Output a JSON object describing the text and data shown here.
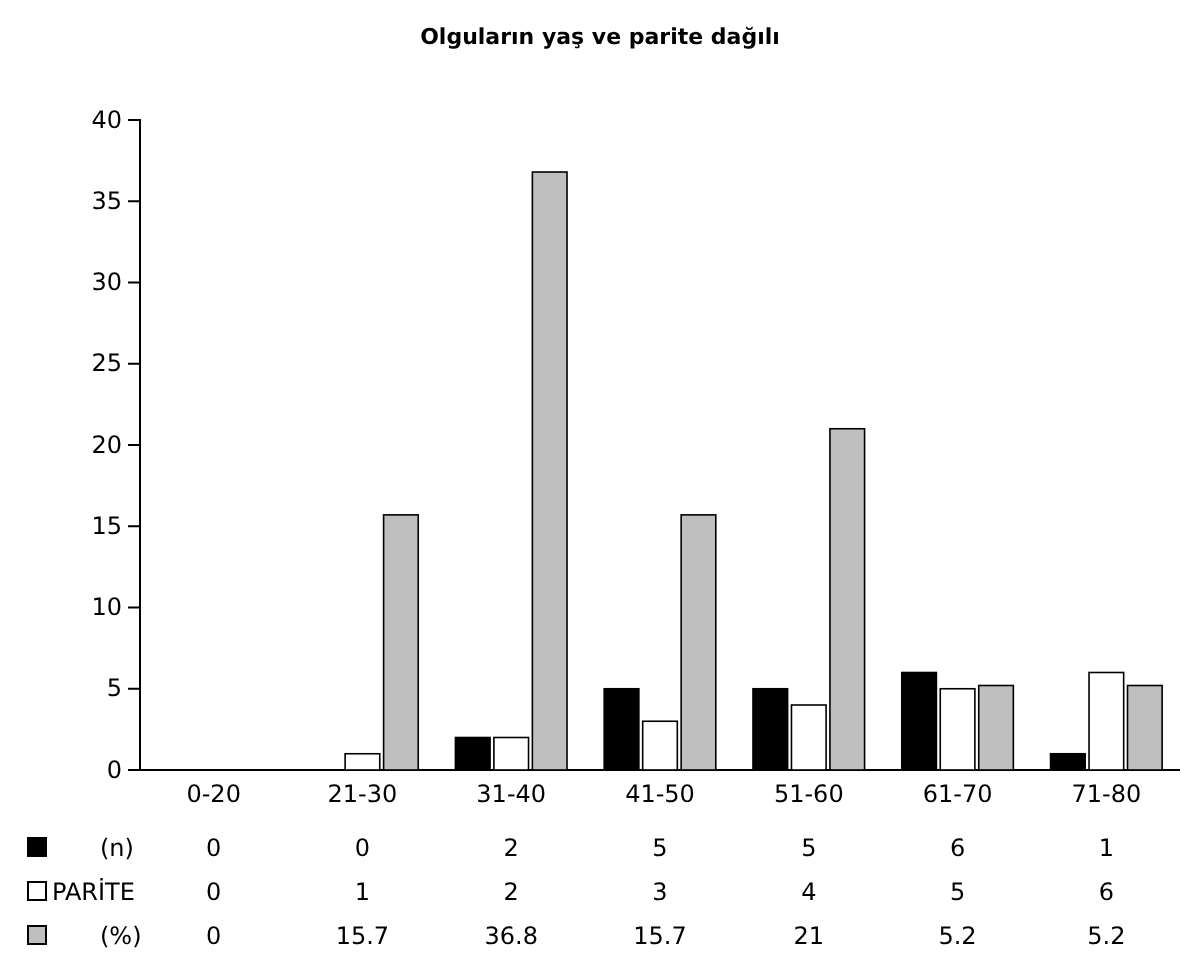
{
  "chart_data": {
    "type": "bar",
    "title": "Olguların yaş ve parite dağılı",
    "categories": [
      "0-20",
      "21-30",
      "31-40",
      "41-50",
      "51-60",
      "61-70",
      "71-80"
    ],
    "series": [
      {
        "name": "(n)",
        "color": "#000000",
        "values": [
          0,
          0,
          2,
          5,
          5,
          6,
          1
        ]
      },
      {
        "name": "PARİTE",
        "color": "#ffffff",
        "values": [
          0,
          1,
          2,
          3,
          4,
          5,
          6
        ]
      },
      {
        "name": "(%)",
        "color": "#bfbfbf",
        "values": [
          0,
          15.7,
          36.8,
          15.7,
          21,
          5.2,
          5.2
        ]
      }
    ],
    "ylim": [
      0,
      40
    ],
    "yticks": [
      0,
      5,
      10,
      15,
      20,
      25,
      30,
      35,
      40
    ],
    "data_labels": true,
    "legend": "bottom",
    "grid": false
  }
}
